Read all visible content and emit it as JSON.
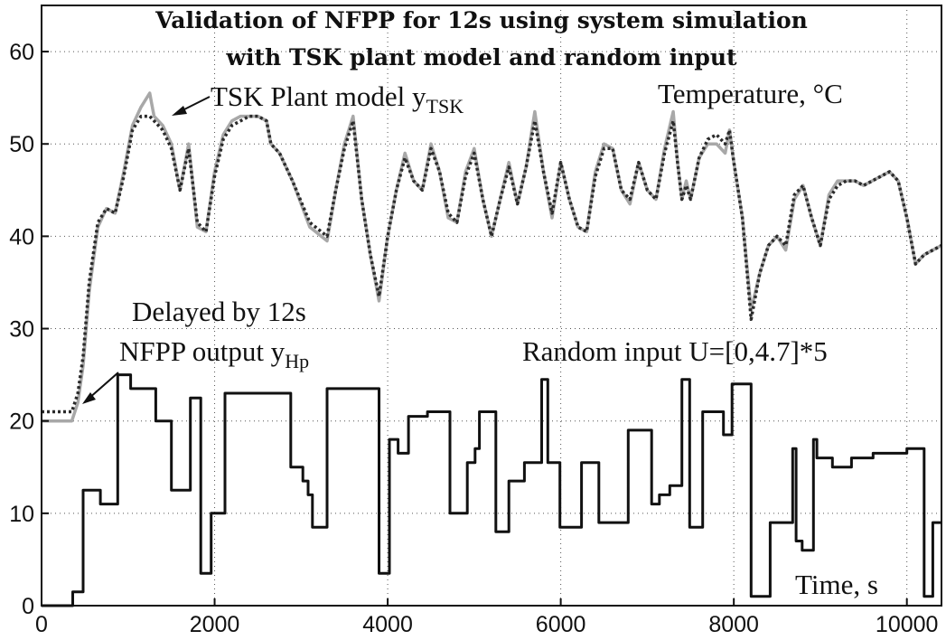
{
  "chart_data": {
    "type": "line",
    "title_lines": [
      "Validation of NFPP for 12s using system simulation",
      "with TSK plant model and random input"
    ],
    "xlabel": "Time, s",
    "ylabel": "Temperature, °C",
    "xlim": [
      0,
      10400
    ],
    "ylim": [
      0,
      65
    ],
    "x_ticks": [
      0,
      2000,
      4000,
      6000,
      8000,
      10000
    ],
    "y_ticks": [
      0,
      10,
      20,
      30,
      40,
      50,
      60
    ],
    "grid": true,
    "annotations": {
      "tsk_label": "TSK Plant model y",
      "tsk_sub": "TSK",
      "delay_label": "Delayed by 12s",
      "nfpp_label": "NFPP output y",
      "nfpp_sub": "Hp",
      "input_label": "Random input U=[0,4.7]*5"
    },
    "series": [
      {
        "key": "tsk",
        "color": "#a8a8a8",
        "style": "solid",
        "x": [
          0,
          100,
          200,
          300,
          350,
          420,
          480,
          550,
          650,
          750,
          850,
          950,
          1050,
          1150,
          1250,
          1300,
          1400,
          1500,
          1600,
          1700,
          1800,
          1900,
          2000,
          2100,
          2200,
          2300,
          2400,
          2500,
          2600,
          2650,
          2750,
          2900,
          3100,
          3300,
          3400,
          3500,
          3600,
          3700,
          3800,
          3900,
          4000,
          4100,
          4200,
          4300,
          4400,
          4500,
          4600,
          4700,
          4800,
          4900,
          5000,
          5100,
          5200,
          5300,
          5400,
          5500,
          5600,
          5700,
          5800,
          5900,
          6000,
          6100,
          6200,
          6300,
          6400,
          6500,
          6600,
          6700,
          6800,
          6900,
          7000,
          7100,
          7200,
          7300,
          7350,
          7400,
          7450,
          7500,
          7600,
          7700,
          7800,
          7900,
          7950,
          8000,
          8100,
          8200,
          8300,
          8400,
          8500,
          8600,
          8700,
          8800,
          8900,
          9000,
          9100,
          9200,
          9300,
          9400,
          9500,
          9600,
          9700,
          9800,
          9900,
          10000,
          10100,
          10200,
          10300,
          10400
        ],
        "y": [
          20,
          20,
          20,
          20,
          20,
          22,
          26,
          34,
          41,
          43,
          42.5,
          47,
          52,
          54,
          55.5,
          53,
          52,
          50,
          45,
          50,
          41,
          40.5,
          47,
          51,
          52.5,
          53,
          53,
          53,
          52.5,
          50,
          49,
          46,
          41,
          39.5,
          45,
          50,
          53,
          44,
          38,
          33,
          40,
          45,
          49,
          46,
          45,
          50,
          47,
          42,
          41.5,
          47,
          49.5,
          44,
          40,
          44,
          48,
          43.5,
          47.5,
          53.5,
          47,
          42,
          48,
          44,
          41,
          40.5,
          47,
          50,
          49.5,
          45,
          43.5,
          48,
          45,
          44,
          49.5,
          53.5,
          48,
          44,
          46,
          44,
          48.5,
          50,
          50,
          49,
          51.5,
          48,
          42,
          32,
          36,
          39,
          40,
          38.5,
          44,
          45.5,
          42,
          39,
          44.5,
          46,
          46,
          46,
          45.5,
          46,
          46.5,
          47,
          46,
          42,
          37,
          38,
          38.5,
          39
        ]
      },
      {
        "key": "nfpp",
        "color": "#2a2a2a",
        "style": "dotted",
        "x": [
          0,
          100,
          200,
          300,
          350,
          420,
          480,
          550,
          650,
          750,
          850,
          950,
          1050,
          1150,
          1250,
          1300,
          1400,
          1500,
          1600,
          1700,
          1800,
          1900,
          2000,
          2100,
          2200,
          2300,
          2400,
          2500,
          2600,
          2650,
          2750,
          2900,
          3100,
          3300,
          3400,
          3500,
          3600,
          3700,
          3800,
          3900,
          4000,
          4100,
          4200,
          4300,
          4400,
          4500,
          4600,
          4700,
          4800,
          4900,
          5000,
          5100,
          5200,
          5300,
          5400,
          5500,
          5600,
          5700,
          5800,
          5900,
          6000,
          6100,
          6200,
          6300,
          6400,
          6500,
          6600,
          6700,
          6800,
          6900,
          7000,
          7100,
          7200,
          7300,
          7350,
          7400,
          7450,
          7500,
          7600,
          7700,
          7800,
          7900,
          7950,
          8000,
          8100,
          8200,
          8300,
          8400,
          8500,
          8600,
          8700,
          8800,
          8900,
          9000,
          9100,
          9200,
          9300,
          9400,
          9500,
          9600,
          9700,
          9800,
          9900,
          10000,
          10100,
          10200,
          10300,
          10400
        ],
        "y": [
          21,
          21,
          21,
          21,
          21,
          23,
          27,
          35,
          41.5,
          43,
          42.5,
          46.5,
          51.5,
          53,
          53,
          52.5,
          51.5,
          49.5,
          45,
          49.5,
          41.5,
          40.5,
          46.5,
          50.5,
          52,
          52.5,
          53,
          53,
          52.5,
          50,
          49,
          46,
          41.5,
          40,
          45,
          49.5,
          52.5,
          44,
          38,
          33.5,
          40,
          45,
          48.5,
          46,
          45,
          49.5,
          47,
          42.5,
          41.5,
          46.5,
          49,
          44,
          40,
          44,
          47.5,
          43.5,
          47.5,
          52.5,
          47,
          42.5,
          48,
          44,
          41,
          40.5,
          46.5,
          49.5,
          49.5,
          45,
          44,
          48,
          45,
          44,
          49,
          52.5,
          48,
          44,
          45.5,
          44,
          48.5,
          50.5,
          51,
          50,
          51.5,
          48,
          42,
          31,
          36,
          39,
          40,
          39,
          44.5,
          45.5,
          42,
          39,
          44,
          45.5,
          46,
          46,
          45.5,
          46,
          46.5,
          47,
          46,
          42,
          37,
          38,
          38.5,
          39
        ]
      },
      {
        "key": "input",
        "color": "#111111",
        "style": "step",
        "x": [
          0,
          360,
          480,
          680,
          880,
          1030,
          1320,
          1500,
          1720,
          1840,
          1960,
          2120,
          2400,
          2780,
          2880,
          3020,
          3080,
          3130,
          3300,
          3600,
          3650,
          3900,
          4020,
          4120,
          4240,
          4460,
          4720,
          4920,
          5010,
          5060,
          5250,
          5400,
          5580,
          5780,
          5850,
          5990,
          6240,
          6440,
          6780,
          7050,
          7140,
          7260,
          7400,
          7490,
          7640,
          7800,
          7880,
          7980,
          8200,
          8420,
          8680,
          8720,
          8790,
          8920,
          8960,
          9140,
          9360,
          9610,
          9800,
          10000,
          10200,
          10300
        ],
        "y": [
          0,
          1.5,
          12.5,
          11,
          25,
          23.5,
          20,
          12.5,
          22.5,
          3.5,
          10,
          23,
          23,
          23,
          15,
          13.5,
          12,
          8.5,
          23.5,
          23.5,
          23.5,
          3.5,
          18,
          16.5,
          20.5,
          21,
          10,
          15.5,
          17,
          21,
          8,
          13.5,
          15.5,
          24.5,
          15.5,
          8.5,
          15.5,
          9,
          19,
          11,
          12,
          13,
          24.5,
          8.5,
          21,
          21,
          18.5,
          24,
          1,
          9,
          17,
          7,
          6,
          18,
          16,
          15,
          16,
          16.5,
          16.5,
          17,
          1,
          9
        ]
      }
    ]
  }
}
